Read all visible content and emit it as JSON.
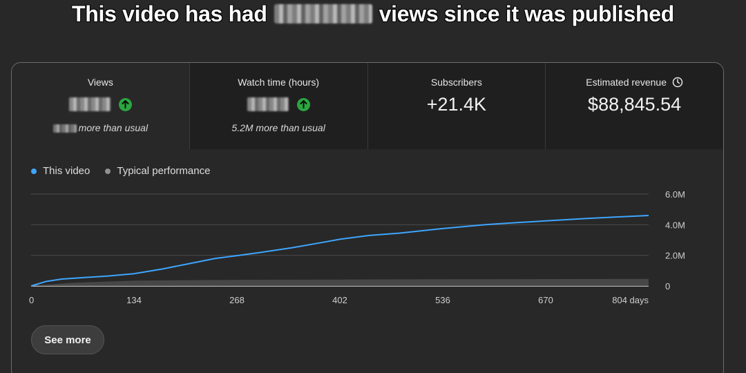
{
  "headline": {
    "prefix": "This video has had",
    "suffix": "views since it was published"
  },
  "metrics": [
    {
      "label": "Views",
      "value": "",
      "comparison": "more than usual",
      "trend_icon": "arrow-up-circle-icon",
      "value_redacted": true
    },
    {
      "label": "Watch time (hours)",
      "value": "",
      "comparison": "5.2M more than usual",
      "trend_icon": "arrow-up-circle-icon",
      "value_redacted": true
    },
    {
      "label": "Subscribers",
      "value": "+21.4K"
    },
    {
      "label": "Estimated revenue",
      "value": "$88,845.54",
      "info_icon": "clock-icon"
    }
  ],
  "legend": [
    {
      "label": "This video",
      "color": "#3ea6ff"
    },
    {
      "label": "Typical performance",
      "color": "#909090"
    }
  ],
  "see_more_label": "See more",
  "colors": {
    "accent_up": "#2ba640",
    "this_video_line": "#3ea6ff",
    "typical_band": "#4a4a4a"
  },
  "chart_data": {
    "type": "line",
    "x_unit": "days",
    "xlim": [
      0,
      804
    ],
    "ylim": [
      0,
      6000000
    ],
    "x_ticks": [
      "0",
      "134",
      "268",
      "402",
      "536",
      "670",
      "804 days"
    ],
    "y_ticks": [
      "6.0M",
      "4.0M",
      "2.0M",
      "0"
    ],
    "grid": true,
    "legend_position": "top-left",
    "series": [
      {
        "name": "This video",
        "color": "#3ea6ff",
        "x": [
          0,
          20,
          40,
          60,
          100,
          134,
          170,
          200,
          240,
          268,
          300,
          340,
          380,
          402,
          440,
          480,
          536,
          590,
          620,
          670,
          720,
          760,
          804
        ],
        "y": [
          0,
          300000,
          450000,
          520000,
          650000,
          800000,
          1100000,
          1400000,
          1800000,
          1980000,
          2200000,
          2500000,
          2850000,
          3050000,
          3300000,
          3450000,
          3750000,
          4000000,
          4100000,
          4250000,
          4400000,
          4500000,
          4600000
        ]
      },
      {
        "name": "Typical performance",
        "color": "#909090",
        "x": [
          0,
          50,
          134,
          268,
          402,
          536,
          670,
          804
        ],
        "y": [
          0,
          200000,
          350000,
          400000,
          420000,
          440000,
          450000,
          460000
        ]
      }
    ]
  }
}
